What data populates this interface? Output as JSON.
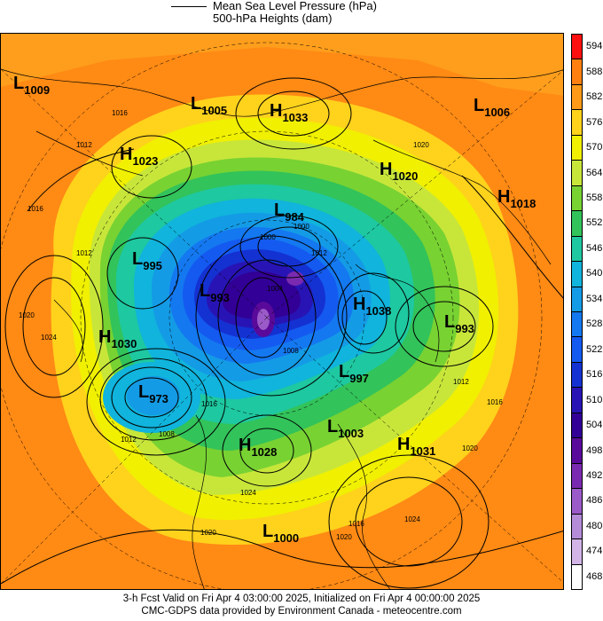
{
  "legend": {
    "mslp_label": "Mean Sea Level Pressure (hPa)",
    "heights_label": "500-hPa Heights (dam)"
  },
  "colorbar": {
    "levels": [
      "594",
      "588",
      "582",
      "576",
      "570",
      "564",
      "558",
      "552",
      "546",
      "540",
      "534",
      "528",
      "522",
      "516",
      "510",
      "504",
      "498",
      "492",
      "486",
      "480",
      "474",
      "468"
    ],
    "colors": [
      "#ff1010",
      "#ff8010",
      "#ff9a18",
      "#ffd21c",
      "#f0f000",
      "#c8e63a",
      "#78d232",
      "#32c35a",
      "#1ec8a0",
      "#10b4dc",
      "#149be6",
      "#1478f0",
      "#145af0",
      "#1432d2",
      "#2814b4",
      "#320096",
      "#5a0a9a",
      "#7a2ab0",
      "#9a5ac8",
      "#b48cd8",
      "#d2b4e6",
      "#ffffff"
    ]
  },
  "systems": [
    {
      "type": "L",
      "value": "1009"
    },
    {
      "type": "L",
      "value": "1005"
    },
    {
      "type": "H",
      "value": "1033"
    },
    {
      "type": "L",
      "value": "1006"
    },
    {
      "type": "H",
      "value": "1023"
    },
    {
      "type": "H",
      "value": "1020"
    },
    {
      "type": "H",
      "value": "1018"
    },
    {
      "type": "L",
      "value": "984"
    },
    {
      "type": "L",
      "value": "995"
    },
    {
      "type": "L",
      "value": "993"
    },
    {
      "type": "H",
      "value": "1038"
    },
    {
      "type": "L",
      "value": "993"
    },
    {
      "type": "H",
      "value": "1030"
    },
    {
      "type": "L",
      "value": "997"
    },
    {
      "type": "L",
      "value": "973"
    },
    {
      "type": "L",
      "value": "1003"
    },
    {
      "type": "H",
      "value": "1028"
    },
    {
      "type": "H",
      "value": "1031"
    },
    {
      "type": "L",
      "value": "1000"
    }
  ],
  "isobar_labels": [
    "1016",
    "1012",
    "1016",
    "1020",
    "1024",
    "1008",
    "1012",
    "1016",
    "1020",
    "1024",
    "1020",
    "1024",
    "1016",
    "1020",
    "1020",
    "1016",
    "1012",
    "1012",
    "1004",
    "1008",
    "1012",
    "1000",
    "1000"
  ],
  "footer": {
    "line1": "3-h Fcst Valid on Fri Apr  4 03:00:00 2025, Initialized on Fri Apr  4 00:00:00 2025",
    "line2": "CMC-GDPS data provided by Environment Canada - meteocentre.com"
  }
}
